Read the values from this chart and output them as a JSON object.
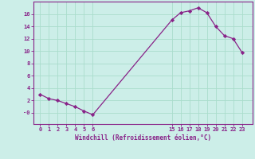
{
  "x": [
    0,
    1,
    2,
    3,
    4,
    5,
    6,
    15,
    16,
    17,
    18,
    19,
    20,
    21,
    22,
    23
  ],
  "y": [
    3.0,
    2.3,
    2.0,
    1.5,
    1.0,
    0.3,
    -0.3,
    15.0,
    16.2,
    16.5,
    17.0,
    16.2,
    14.0,
    12.5,
    12.0,
    9.8
  ],
  "xticks": [
    0,
    1,
    2,
    3,
    4,
    5,
    6,
    15,
    16,
    17,
    18,
    19,
    20,
    21,
    22,
    23
  ],
  "ytick_vals": [
    0,
    2,
    4,
    6,
    8,
    10,
    12,
    14,
    16
  ],
  "ytick_labels": [
    "-0",
    "2",
    "4",
    "6",
    "8",
    "10",
    "12",
    "14",
    "16"
  ],
  "ylim": [
    -1.8,
    18.0
  ],
  "xlim": [
    -0.8,
    24.2
  ],
  "xlabel": "Windchill (Refroidissement éolien,°C)",
  "line_color": "#882288",
  "marker": "D",
  "marker_size": 2.2,
  "bg_color": "#cceee8",
  "grid_color": "#aaddcc",
  "tick_color": "#882288",
  "label_color": "#882288"
}
